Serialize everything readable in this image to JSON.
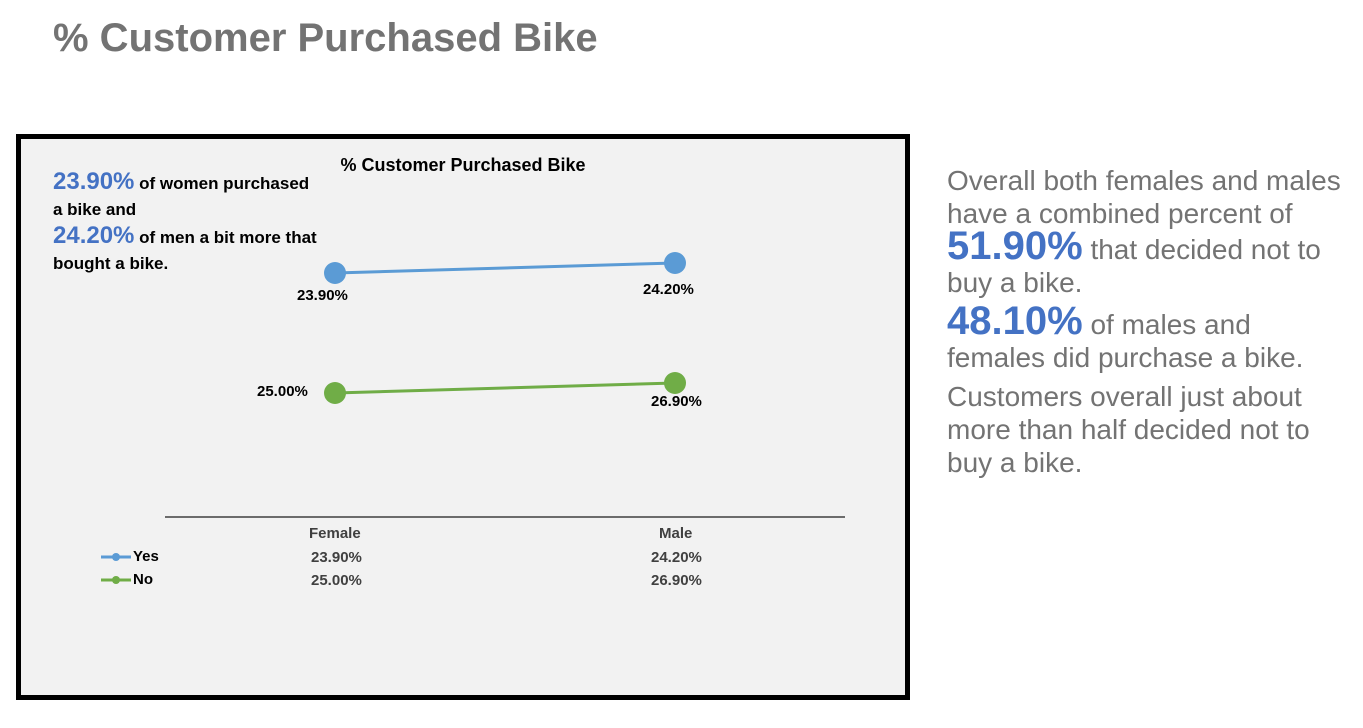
{
  "page": {
    "title": "% Customer Purchased Bike"
  },
  "callout": {
    "women_pct": "23.90%",
    "women_text": " of women purchased a bike and",
    "men_pct": "24.20%",
    "men_text": " of men a bit more that bought a bike."
  },
  "side": {
    "p1_a": "Overall both females and males have a combined percent of ",
    "p1_pct": "51.90%",
    "p1_b": " that decided not to buy a bike.",
    "p2_pct": "48.10%",
    "p2_b": " of males and females did purchase a bike.",
    "p3": "Customers overall just about more than half decided not to buy a bike."
  },
  "chart_data": {
    "type": "line",
    "title": "% Customer Purchased Bike",
    "categories": [
      "Female",
      "Male"
    ],
    "series": [
      {
        "name": "Yes",
        "values": [
          23.9,
          24.2
        ],
        "labels": [
          "23.90%",
          "24.20%"
        ],
        "color": "#5b9bd5"
      },
      {
        "name": "No",
        "values": [
          25.0,
          26.9
        ],
        "labels": [
          "25.00%",
          "26.90%"
        ],
        "color": "#70ad47"
      }
    ],
    "data_table": true,
    "legend": "data-table-left"
  }
}
